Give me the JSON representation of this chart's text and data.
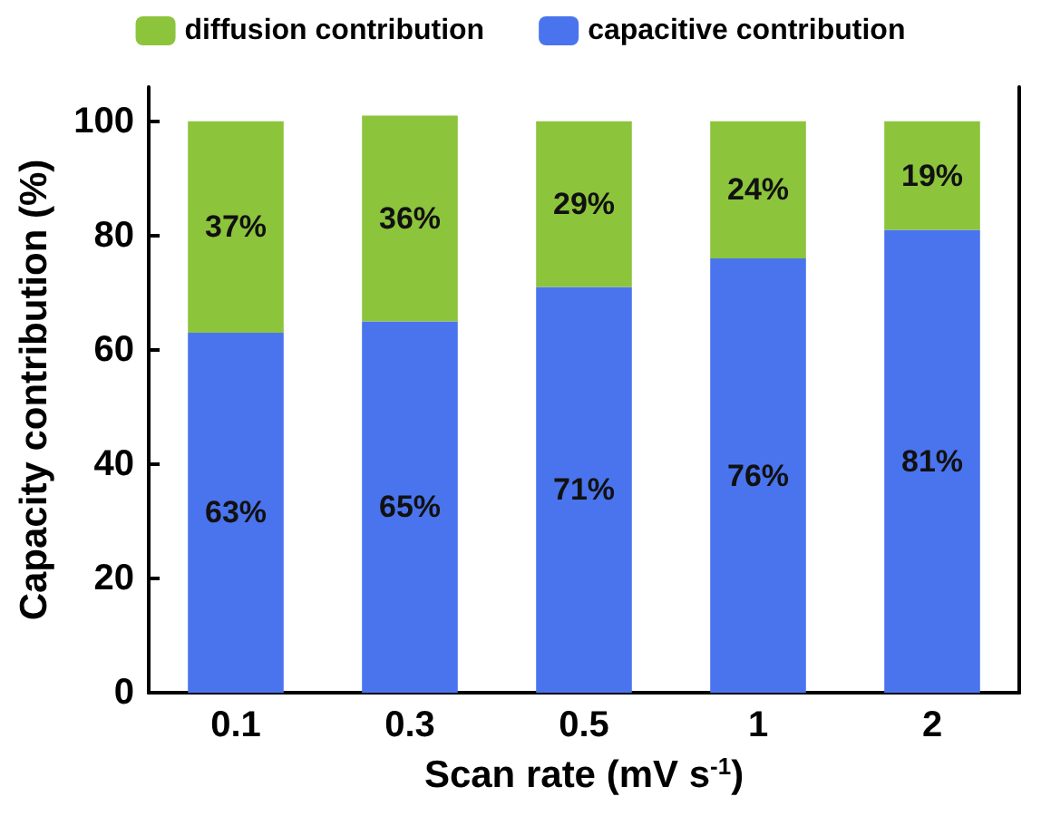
{
  "chart_data": {
    "type": "bar",
    "stacked": true,
    "xlabel": "Scan rate (mV s$^{-1}$)",
    "ylabel": "Capacity contribution (%)",
    "categories": [
      "0.1",
      "0.3",
      "0.5",
      "1",
      "2"
    ],
    "series": [
      {
        "name": "capacitive contribution",
        "color": "#4a74ee",
        "values": [
          63,
          65,
          71,
          76,
          81
        ],
        "value_labels": [
          "63%",
          "65%",
          "71%",
          "76%",
          "81%"
        ]
      },
      {
        "name": "diffusion contribution",
        "color": "#8cc43c",
        "values": [
          37,
          36,
          29,
          24,
          19
        ],
        "value_labels": [
          "37%",
          "36%",
          "29%",
          "24%",
          "19%"
        ]
      }
    ],
    "ylim": [
      0,
      106
    ],
    "yticks": [
      0,
      20,
      40,
      60,
      80,
      100
    ],
    "grid": false,
    "legend": "top"
  }
}
